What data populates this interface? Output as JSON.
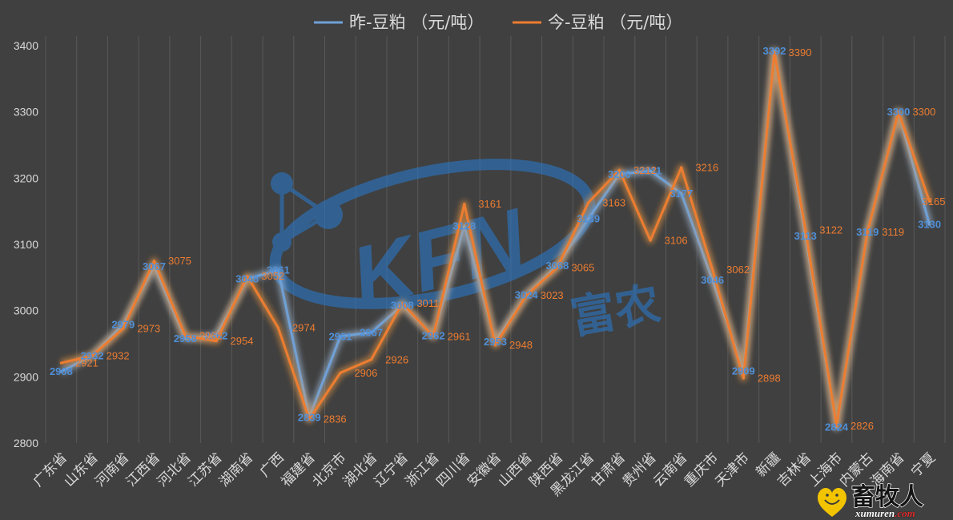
{
  "chart_data": {
    "type": "line",
    "categories": [
      "广东省",
      "山东省",
      "河南省",
      "江西省",
      "河北省",
      "江苏省",
      "湖南省",
      "广西",
      "福建省",
      "北京市",
      "湖北省",
      "辽宁省",
      "浙江省",
      "四川省",
      "安徽省",
      "山西省",
      "陕西省",
      "黑龙江省",
      "甘肃省",
      "贵州省",
      "云南省",
      "重庆市",
      "天津市",
      "新疆",
      "吉林省",
      "上海市",
      "内蒙古",
      "海南省",
      "宁夏"
    ],
    "series": [
      {
        "name": "昨-豆粕 （元/吨）",
        "color": "#6fa0d6",
        "glow": "#a9c8ea",
        "label_color": "#4f8fd8",
        "values": [
          2908,
          2932,
          2979,
          3067,
          2958,
          2962,
          3048,
          3061,
          2839,
          2961,
          2967,
          3008,
          2962,
          3128,
          2953,
          3024,
          3068,
          3139,
          3206,
          3211,
          3177,
          3046,
          2909,
          3392,
          3113,
          2824,
          3119,
          3300,
          3130
        ]
      },
      {
        "name": "今-豆粕 （元/吨）",
        "color": "#ed7d31",
        "glow": "#f49b40",
        "label_color": "#ed7d31",
        "values": [
          2921,
          2932,
          2973,
          3075,
          2962,
          2954,
          3052,
          2974,
          2836,
          2906,
          2926,
          3011,
          2961,
          3161,
          2948,
          3023,
          3065,
          3163,
          3212,
          3106,
          3216,
          3062,
          2898,
          3390,
          3122,
          2826,
          3119,
          3300,
          3165
        ]
      }
    ],
    "ylim": [
      2800,
      3400
    ],
    "yticks": [
      2800,
      2900,
      3000,
      3100,
      3200,
      3300,
      3400
    ],
    "legend_position": "top",
    "grid": {
      "vertical": true,
      "horizontal": false
    }
  },
  "colors": {
    "background": "#404040",
    "gridline": "#595959",
    "axis_text": "#d9d9d9"
  },
  "watermark": {
    "brand": "KFN",
    "name": "富农",
    "color": "#2a78c8"
  },
  "logo": {
    "name": "畜牧人",
    "domain": "xumuren",
    "tld": ".com",
    "heart_color": "#f2c400",
    "tld_color": "#e03030"
  }
}
